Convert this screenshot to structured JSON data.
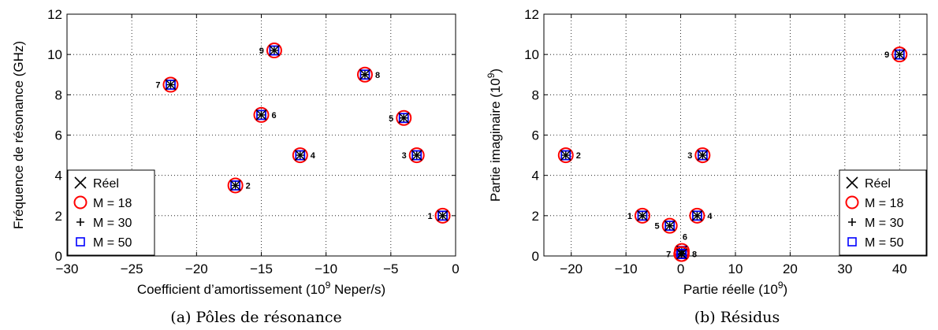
{
  "chart_data": [
    {
      "type": "scatter",
      "caption": "(a) Pôles de résonance",
      "xlabel": "Coefficient d’amortissement (10",
      "xlabel_sup": "9",
      "xlabel_suffix": " Neper/s)",
      "ylabel": "Fréquence de résonance (GHz)",
      "xlim": [
        -30,
        0
      ],
      "ylim": [
        0,
        12
      ],
      "xticks": [
        -30,
        -25,
        -20,
        -15,
        -10,
        -5,
        0
      ],
      "xtick_labels": [
        "−30",
        "−25",
        "−20",
        "−15",
        "−10",
        "−5",
        "0"
      ],
      "yticks": [
        0,
        2,
        4,
        6,
        8,
        10,
        12
      ],
      "ytick_labels": [
        "0",
        "2",
        "4",
        "6",
        "8",
        "10",
        "12"
      ],
      "grid": true,
      "legend_position": "bottom-left",
      "series": [
        {
          "name": "Réel",
          "marker": "x",
          "color": "#000000"
        },
        {
          "name": "M = 18",
          "marker": "circle",
          "color": "#ff0000"
        },
        {
          "name": "M = 30",
          "marker": "plus",
          "color": "#000000"
        },
        {
          "name": "M = 50",
          "marker": "square",
          "color": "#0000ff"
        }
      ],
      "points": [
        {
          "label": "1",
          "x": -1,
          "y": 2,
          "side": "left"
        },
        {
          "label": "2",
          "x": -17,
          "y": 3.5,
          "side": "right"
        },
        {
          "label": "3",
          "x": -3,
          "y": 5,
          "side": "left"
        },
        {
          "label": "4",
          "x": -12,
          "y": 5,
          "side": "right"
        },
        {
          "label": "5",
          "x": -4,
          "y": 6.85,
          "side": "left"
        },
        {
          "label": "6",
          "x": -15,
          "y": 7,
          "side": "right"
        },
        {
          "label": "7",
          "x": -22,
          "y": 8.5,
          "side": "left"
        },
        {
          "label": "8",
          "x": -7,
          "y": 9,
          "side": "right"
        },
        {
          "label": "9",
          "x": -14,
          "y": 10.2,
          "side": "left"
        }
      ]
    },
    {
      "type": "scatter",
      "caption": "(b) Résidus",
      "xlabel": "Partie réelle (10",
      "xlabel_sup": "9",
      "xlabel_suffix": ")",
      "ylabel": "Partie imaginaire (10",
      "ylabel_sup": "9",
      "ylabel_suffix": ")",
      "xlim": [
        -25,
        45
      ],
      "ylim": [
        0,
        12
      ],
      "xticks": [
        -20,
        -10,
        0,
        10,
        20,
        30,
        40
      ],
      "xtick_labels": [
        "−20",
        "−10",
        "0",
        "10",
        "20",
        "30",
        "40"
      ],
      "yticks": [
        0,
        2,
        4,
        6,
        8,
        10,
        12
      ],
      "ytick_labels": [
        "0",
        "2",
        "4",
        "6",
        "8",
        "10",
        "12"
      ],
      "grid": true,
      "legend_position": "bottom-right",
      "series": [
        {
          "name": "Réel",
          "marker": "x",
          "color": "#000000"
        },
        {
          "name": "M = 18",
          "marker": "circle",
          "color": "#ff0000"
        },
        {
          "name": "M = 30",
          "marker": "plus",
          "color": "#000000"
        },
        {
          "name": "M = 50",
          "marker": "square",
          "color": "#0000ff"
        }
      ],
      "points": [
        {
          "label": "1",
          "x": -7,
          "y": 2,
          "side": "left"
        },
        {
          "label": "2",
          "x": -21,
          "y": 5,
          "side": "right"
        },
        {
          "label": "3",
          "x": 4,
          "y": 5,
          "side": "left"
        },
        {
          "label": "4",
          "x": 3,
          "y": 2,
          "side": "right"
        },
        {
          "label": "5",
          "x": -2,
          "y": 1.5,
          "side": "left"
        },
        {
          "label": "6",
          "x": 0.2,
          "y": 0.25,
          "side": "above"
        },
        {
          "label": "7",
          "x": 0.1,
          "y": 0.1,
          "side": "left"
        },
        {
          "label": "8",
          "x": 0.2,
          "y": 0.1,
          "side": "right"
        },
        {
          "label": "9",
          "x": 40,
          "y": 10,
          "side": "left"
        }
      ]
    }
  ]
}
